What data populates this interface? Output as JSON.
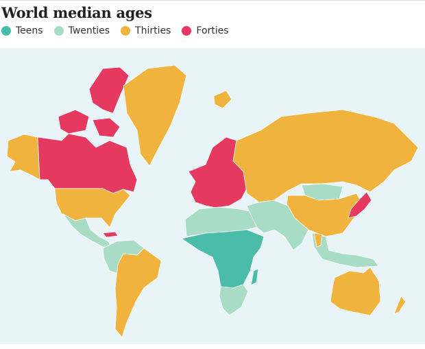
{
  "title": "World median ages",
  "legend": [
    {
      "label": "Teens",
      "color": "#4cbcaa"
    },
    {
      "label": "Twenties",
      "color": "#a9dcc5"
    },
    {
      "label": "Thirties",
      "color": "#f0b43e"
    },
    {
      "label": "Forties",
      "color": "#e6395f"
    }
  ]
}
